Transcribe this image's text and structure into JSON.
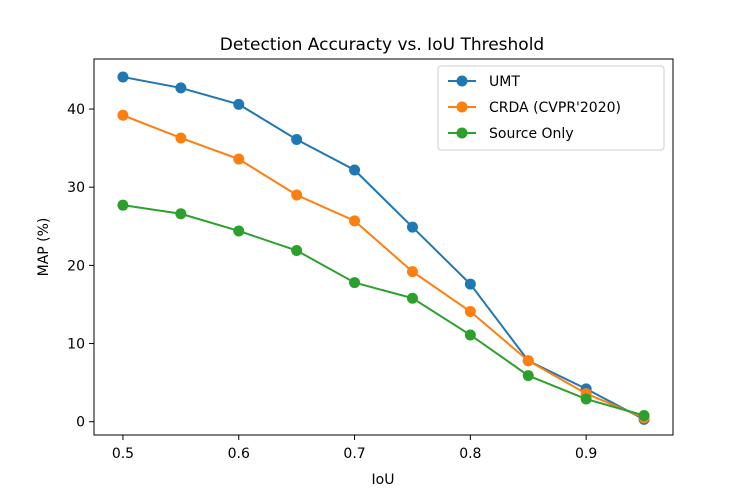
{
  "chart_data": {
    "type": "line",
    "title": "Detection Accuracty vs. IoU Threshold",
    "xlabel": "IoU",
    "ylabel": "MAP (%)",
    "x": [
      0.5,
      0.55,
      0.6,
      0.65,
      0.7,
      0.75,
      0.8,
      0.85,
      0.9,
      0.95
    ],
    "xlim": [
      0.475,
      0.975
    ],
    "ylim": [
      -1.7,
      46.4
    ],
    "xticks": [
      0.5,
      0.6,
      0.7,
      0.8,
      0.9
    ],
    "xtick_labels": [
      "0.5",
      "0.6",
      "0.7",
      "0.8",
      "0.9"
    ],
    "yticks": [
      0,
      10,
      20,
      30,
      40
    ],
    "ytick_labels": [
      "0",
      "10",
      "20",
      "30",
      "40"
    ],
    "grid": false,
    "legend_position": "top-right",
    "series": [
      {
        "name": "UMT",
        "color": "#1f77b4",
        "values": [
          44.1,
          42.7,
          40.6,
          36.1,
          32.2,
          24.9,
          17.6,
          7.8,
          4.2,
          0.3
        ]
      },
      {
        "name": "CRDA (CVPR'2020)",
        "color": "#ff7f0e",
        "values": [
          39.2,
          36.3,
          33.6,
          29.0,
          25.7,
          19.2,
          14.1,
          7.8,
          3.6,
          0.5
        ]
      },
      {
        "name": "Source Only",
        "color": "#2ca02c",
        "values": [
          27.7,
          26.6,
          24.4,
          21.9,
          17.8,
          15.8,
          11.1,
          5.9,
          2.9,
          0.8
        ]
      }
    ]
  }
}
